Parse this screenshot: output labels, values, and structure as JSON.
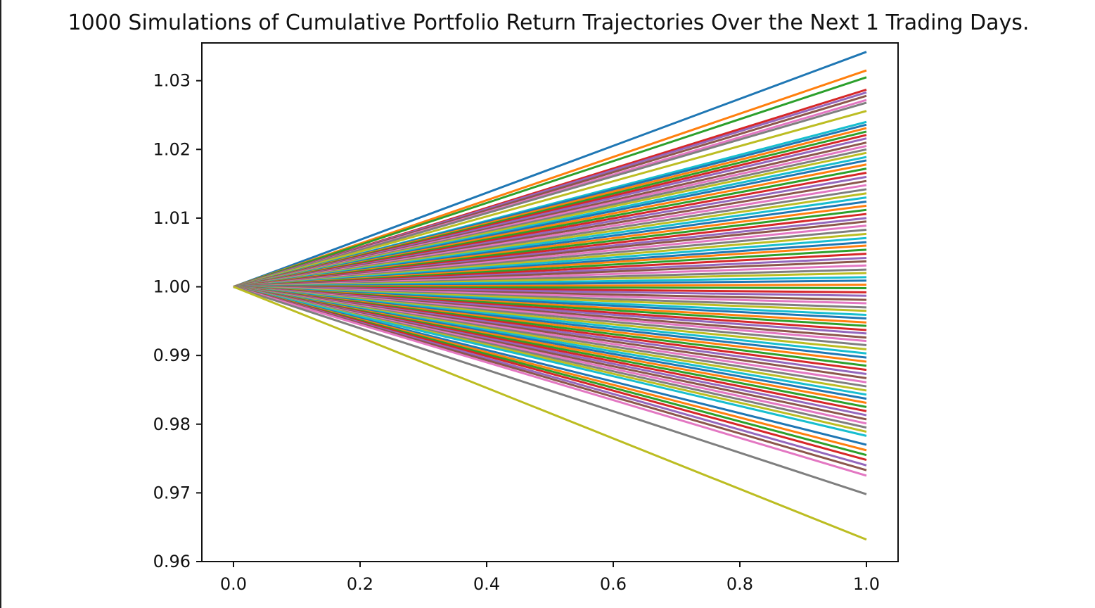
{
  "chart_data": {
    "type": "line",
    "title": "1000 Simulations of Cumulative Portfolio Return Trajectories Over the Next 1 Trading Days.",
    "xlabel": "",
    "ylabel": "",
    "xlim": [
      -0.05,
      1.05
    ],
    "ylim": [
      0.96,
      1.0355
    ],
    "grid": false,
    "legend": "none",
    "x": [
      0,
      1
    ],
    "start_value": 1.0,
    "x_ticks": [
      0.0,
      0.2,
      0.4,
      0.6,
      0.8,
      1.0
    ],
    "x_tick_labels": [
      "0.0",
      "0.2",
      "0.4",
      "0.6",
      "0.8",
      "1.0"
    ],
    "y_ticks": [
      0.96,
      0.97,
      0.98,
      0.99,
      1.0,
      1.01,
      1.02,
      1.03
    ],
    "y_tick_labels": [
      "0.96",
      "0.97",
      "0.98",
      "0.99",
      "1.00",
      "1.01",
      "1.02",
      "1.03"
    ],
    "series_count": 1000,
    "series_colors": [
      "#1f77b4",
      "#ff7f0e",
      "#2ca02c",
      "#d62728",
      "#9467bd",
      "#8c564b",
      "#e377c2",
      "#7f7f7f",
      "#bcbd22",
      "#17becf"
    ],
    "end_values": [
      1.0342,
      1.0315,
      1.0305,
      1.0287,
      1.0283,
      1.0278,
      1.0272,
      1.0268,
      1.0256,
      1.024,
      1.0236,
      1.0231,
      1.0226,
      1.0221,
      1.0216,
      1.021,
      1.0205,
      1.02,
      1.0195,
      1.0189,
      1.0184,
      1.0178,
      1.0172,
      1.0166,
      1.016,
      1.0154,
      1.0148,
      1.0142,
      1.0136,
      1.013,
      1.0124,
      1.0118,
      1.0112,
      1.0106,
      1.01,
      1.0095,
      1.0089,
      1.0083,
      1.0077,
      1.0071,
      1.0065,
      1.006,
      1.0054,
      1.0048,
      1.0042,
      1.0037,
      1.0031,
      1.0025,
      1.002,
      1.0014,
      1.0009,
      1.0003,
      0.9998,
      0.9992,
      0.9987,
      0.9981,
      0.9976,
      0.997,
      0.9965,
      0.9959,
      0.9954,
      0.9948,
      0.9943,
      0.9937,
      0.9932,
      0.9926,
      0.9921,
      0.9915,
      0.9909,
      0.9903,
      0.9897,
      0.9891,
      0.9885,
      0.9879,
      0.9873,
      0.9867,
      0.9861,
      0.9855,
      0.9849,
      0.9843,
      0.9837,
      0.9831,
      0.9825,
      0.9819,
      0.9813,
      0.9807,
      0.9801,
      0.9795,
      0.9789,
      0.9783,
      0.977,
      0.9762,
      0.9755,
      0.9748,
      0.974,
      0.9733,
      0.9725,
      0.9698,
      0.9632
    ]
  }
}
